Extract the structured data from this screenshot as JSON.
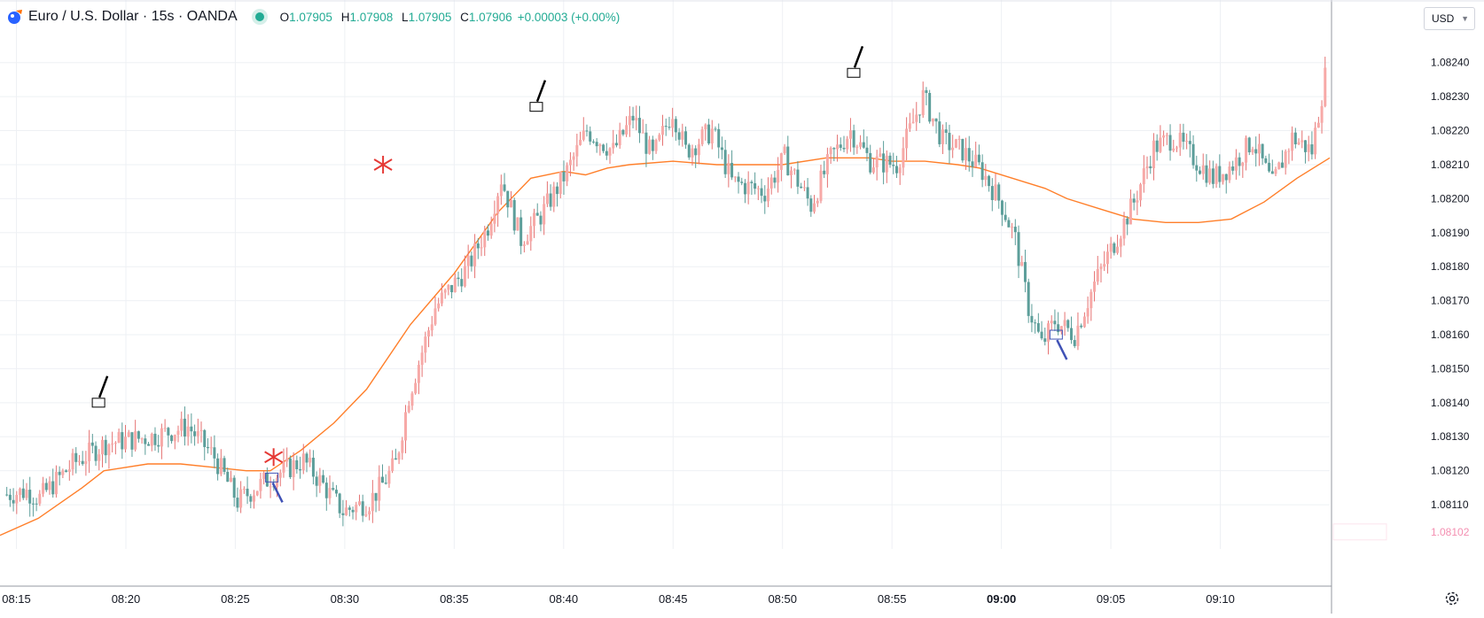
{
  "header": {
    "symbol": "Euro / U.S. Dollar · 15s · OANDA",
    "ohlc": {
      "o_label": "O",
      "o": "1.07905",
      "h_label": "H",
      "h": "1.07908",
      "l_label": "L",
      "l": "1.07905",
      "c_label": "C",
      "c": "1.07906"
    },
    "change": "+0.00003 (+0.00%)",
    "currency": "USD",
    "icons": [
      "oanda-logo-icon",
      "market-status-dot-icon",
      "chevron-down-icon",
      "gear-icon"
    ]
  },
  "colors": {
    "up": "#f7a9a7",
    "up_border": "#e57373",
    "down": "#5c9e9a",
    "ma": "#ff7f2a",
    "grid": "#eef0f4",
    "text": "#131722",
    "price_label": "#f48fb1"
  },
  "chart_data": {
    "type": "candlestick",
    "ylim": [
      1.08097,
      1.08248
    ],
    "xlim": [
      "08:14:15",
      "09:15:00"
    ],
    "price_ticks": [
      "1.08110",
      "1.08120",
      "1.08130",
      "1.08140",
      "1.08150",
      "1.08160",
      "1.08170",
      "1.08180",
      "1.08190",
      "1.08200",
      "1.08210",
      "1.08220",
      "1.08230",
      "1.08240"
    ],
    "price_tick_values": [
      1.0811,
      1.0812,
      1.0813,
      1.0814,
      1.0815,
      1.0816,
      1.0817,
      1.0818,
      1.0819,
      1.082,
      1.0821,
      1.0822,
      1.0823,
      1.0824
    ],
    "last_price_label": "1.08102",
    "last_price_value": 1.08102,
    "time_ticks": [
      "08:15",
      "08:20",
      "08:25",
      "08:30",
      "08:35",
      "08:40",
      "08:45",
      "08:50",
      "08:55",
      "09:00",
      "09:05",
      "09:10"
    ],
    "time_tick_minutes": [
      15,
      20,
      25,
      30,
      35,
      40,
      45,
      50,
      55,
      60,
      65,
      70
    ],
    "bold_time_tick": "09:00",
    "candle_path": [
      [
        0,
        1.08113
      ],
      [
        6,
        1.08114
      ],
      [
        10,
        1.08112
      ],
      [
        20,
        1.08122
      ],
      [
        30,
        1.08128
      ],
      [
        44,
        1.0813
      ],
      [
        55,
        1.08133
      ],
      [
        63,
        1.08124
      ],
      [
        70,
        1.08111
      ],
      [
        80,
        1.08118
      ],
      [
        90,
        1.08123
      ],
      [
        95,
        1.08117
      ],
      [
        102,
        1.08108
      ],
      [
        110,
        1.08111
      ],
      [
        114,
        1.08116
      ],
      [
        118,
        1.08122
      ],
      [
        122,
        1.08142
      ],
      [
        130,
        1.08168
      ],
      [
        140,
        1.0818
      ],
      [
        146,
        1.08192
      ],
      [
        150,
        1.08206
      ],
      [
        156,
        1.08188
      ],
      [
        162,
        1.08195
      ],
      [
        170,
        1.08208
      ],
      [
        176,
        1.0822
      ],
      [
        184,
        1.08214
      ],
      [
        190,
        1.08224
      ],
      [
        196,
        1.08212
      ],
      [
        202,
        1.08226
      ],
      [
        206,
        1.08214
      ],
      [
        214,
        1.0822
      ],
      [
        220,
        1.08205
      ],
      [
        230,
        1.08202
      ],
      [
        236,
        1.08212
      ],
      [
        244,
        1.08198
      ],
      [
        250,
        1.08212
      ],
      [
        256,
        1.0822
      ],
      [
        262,
        1.08211
      ],
      [
        270,
        1.0821
      ],
      [
        278,
        1.0823
      ],
      [
        284,
        1.08217
      ],
      [
        290,
        1.08214
      ],
      [
        296,
        1.08208
      ],
      [
        302,
        1.08198
      ],
      [
        306,
        1.08188
      ],
      [
        310,
        1.08168
      ],
      [
        314,
        1.08157
      ],
      [
        318,
        1.08164
      ],
      [
        324,
        1.0816
      ],
      [
        330,
        1.08175
      ],
      [
        336,
        1.08187
      ],
      [
        342,
        1.08199
      ],
      [
        348,
        1.08215
      ],
      [
        354,
        1.08218
      ],
      [
        360,
        1.08212
      ],
      [
        366,
        1.08206
      ],
      [
        372,
        1.0821
      ],
      [
        378,
        1.08217
      ],
      [
        384,
        1.08204
      ],
      [
        390,
        1.08218
      ],
      [
        396,
        1.08214
      ],
      [
        400,
        1.08236
      ]
    ],
    "ma_series": {
      "minutes": [
        14.25,
        16,
        18,
        19,
        21,
        22.5,
        24,
        25.5,
        26.6,
        28,
        29.5,
        31,
        33,
        35,
        37,
        38.5,
        40,
        41,
        42,
        43,
        45,
        47,
        48,
        50,
        52,
        54,
        55,
        56.5,
        58,
        59,
        60.5,
        62,
        63,
        64.5,
        66,
        67.5,
        69,
        70.5,
        72,
        73.5,
        75
      ],
      "values": [
        1.08101,
        1.08106,
        1.08115,
        1.0812,
        1.08122,
        1.08122,
        1.08121,
        1.0812,
        1.0812,
        1.08126,
        1.08134,
        1.08144,
        1.08163,
        1.08178,
        1.08196,
        1.08206,
        1.08208,
        1.08207,
        1.08209,
        1.0821,
        1.08211,
        1.0821,
        1.0821,
        1.0821,
        1.08212,
        1.08212,
        1.08211,
        1.08211,
        1.0821,
        1.08209,
        1.08206,
        1.08203,
        1.082,
        1.08197,
        1.08194,
        1.08193,
        1.08193,
        1.08194,
        1.08199,
        1.08206,
        1.08212
      ]
    },
    "annotations": [
      {
        "kind": "box",
        "time": "08:18:45",
        "price": 1.0814,
        "color": "#000000"
      },
      {
        "kind": "box",
        "time": "08:26:40",
        "price": 1.08118,
        "color": "#3f51b5"
      },
      {
        "kind": "box",
        "time": "08:38:45",
        "price": 1.08227,
        "color": "#000000"
      },
      {
        "kind": "box",
        "time": "08:53:15",
        "price": 1.08237,
        "color": "#000000"
      },
      {
        "kind": "box",
        "time": "09:02:30",
        "price": 1.0816,
        "color": "#3f51b5"
      },
      {
        "kind": "cross",
        "time": "08:26:45",
        "price": 1.08124,
        "color": "#e53935"
      },
      {
        "kind": "cross",
        "time": "08:31:45",
        "price": 1.0821,
        "color": "#e53935"
      }
    ]
  }
}
